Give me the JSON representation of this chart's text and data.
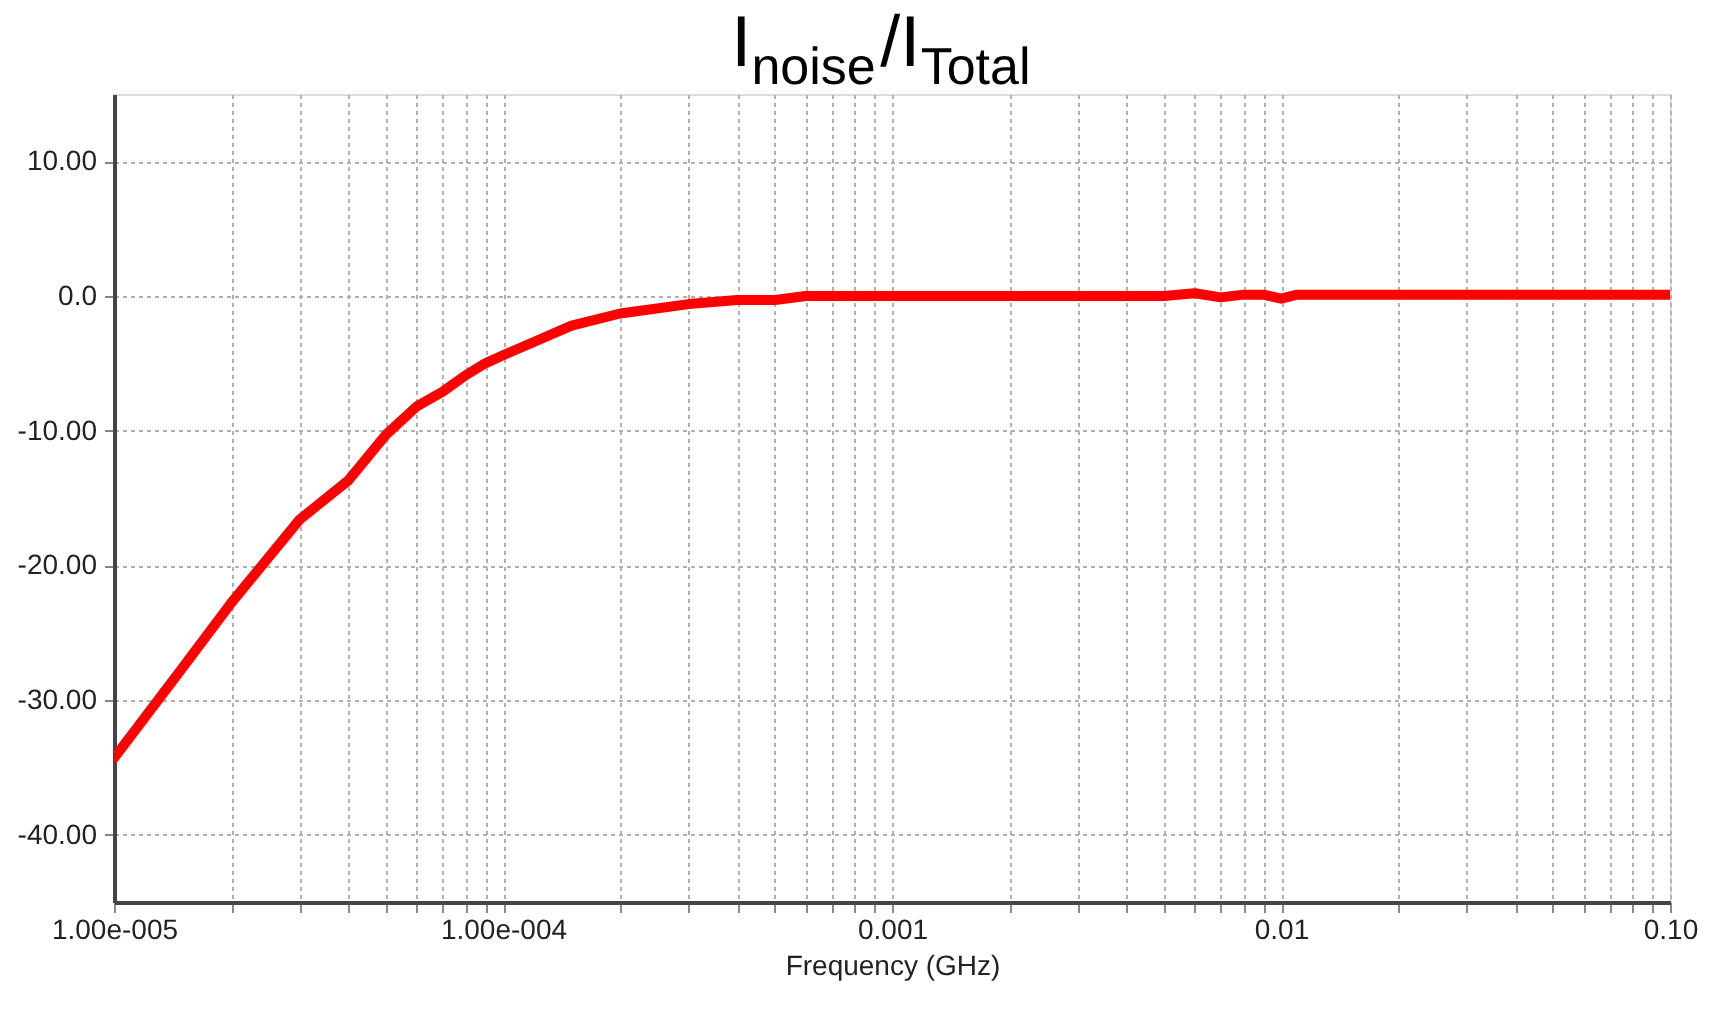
{
  "chart_data": {
    "type": "line",
    "title": "I$_{noise}$/I$_{Total}$",
    "xlabel": "Frequency (GHz)",
    "log": "x",
    "grid": true,
    "legend": false,
    "marker": "none",
    "line_style": "solid",
    "xlim": [
      1e-05,
      0.1
    ],
    "ylim": [
      -45,
      15
    ],
    "xticks": [
      {
        "value": 1e-05,
        "label": "1.00e-005"
      },
      {
        "value": 2e-05,
        "label": null
      },
      {
        "value": 3e-05,
        "label": null
      },
      {
        "value": 4e-05,
        "label": null
      },
      {
        "value": 5e-05,
        "label": null
      },
      {
        "value": 6e-05,
        "label": null
      },
      {
        "value": 7e-05,
        "label": null
      },
      {
        "value": 8e-05,
        "label": null
      },
      {
        "value": 9e-05,
        "label": null
      },
      {
        "value": 0.0001,
        "label": "1.00e-004"
      },
      {
        "value": 0.0002,
        "label": null
      },
      {
        "value": 0.0003,
        "label": null
      },
      {
        "value": 0.0004,
        "label": null
      },
      {
        "value": 0.0005,
        "label": null
      },
      {
        "value": 0.0006,
        "label": null
      },
      {
        "value": 0.0007,
        "label": null
      },
      {
        "value": 0.0008,
        "label": null
      },
      {
        "value": 0.0009,
        "label": null
      },
      0.001,
      {
        "value": 0.002,
        "label": null
      },
      {
        "value": 0.003,
        "label": null
      },
      {
        "value": 0.004,
        "label": null
      },
      {
        "value": 0.005,
        "label": null
      },
      {
        "value": 0.006,
        "label": null
      },
      {
        "value": 0.007,
        "label": null
      },
      {
        "value": 0.008,
        "label": null
      },
      {
        "value": 0.009,
        "label": null
      },
      0.01,
      {
        "value": 0.02,
        "label": null
      },
      {
        "value": 0.03,
        "label": null
      },
      {
        "value": 0.04,
        "label": null
      },
      {
        "value": 0.05,
        "label": null
      },
      {
        "value": 0.06,
        "label": null
      },
      {
        "value": 0.07,
        "label": null
      },
      {
        "value": 0.08,
        "label": null
      },
      {
        "value": 0.09,
        "label": null
      },
      {
        "value": 0.1,
        "label": "0.10"
      }
    ],
    "yticks": [
      {
        "value": 10,
        "label": "10.00"
      },
      {
        "value": 0,
        "label": "0.0"
      },
      {
        "value": -10,
        "label": "-10.00"
      },
      {
        "value": -20,
        "label": "-20.00"
      },
      {
        "value": -30,
        "label": "-30.00"
      },
      {
        "value": -40,
        "label": "-40.00"
      }
    ],
    "series": [
      {
        "color": "#ff0000",
        "x": [
          1e-05,
          1.5e-05,
          2e-05,
          3e-05,
          4e-05,
          5e-05,
          6e-05,
          7e-05,
          8e-05,
          9e-05,
          0.0001,
          0.00015,
          0.0002,
          0.0003,
          0.0004,
          0.0005,
          0.0006,
          0.001,
          0.002,
          0.005,
          0.006,
          0.007,
          0.008,
          0.009,
          0.01,
          0.011,
          0.02,
          0.05,
          0.1
        ],
        "values": [
          -34.3,
          -27.6,
          -22.8,
          -16.6,
          -13.7,
          -10.3,
          -8.2,
          -7.1,
          -5.9,
          -5.0,
          -4.4,
          -2.2,
          -1.3,
          -0.6,
          -0.3,
          -0.3,
          0.0,
          0.0,
          0.0,
          0.0,
          0.2,
          -0.1,
          0.1,
          0.1,
          -0.2,
          0.1,
          0.1,
          0.1,
          0.1
        ]
      }
    ]
  }
}
